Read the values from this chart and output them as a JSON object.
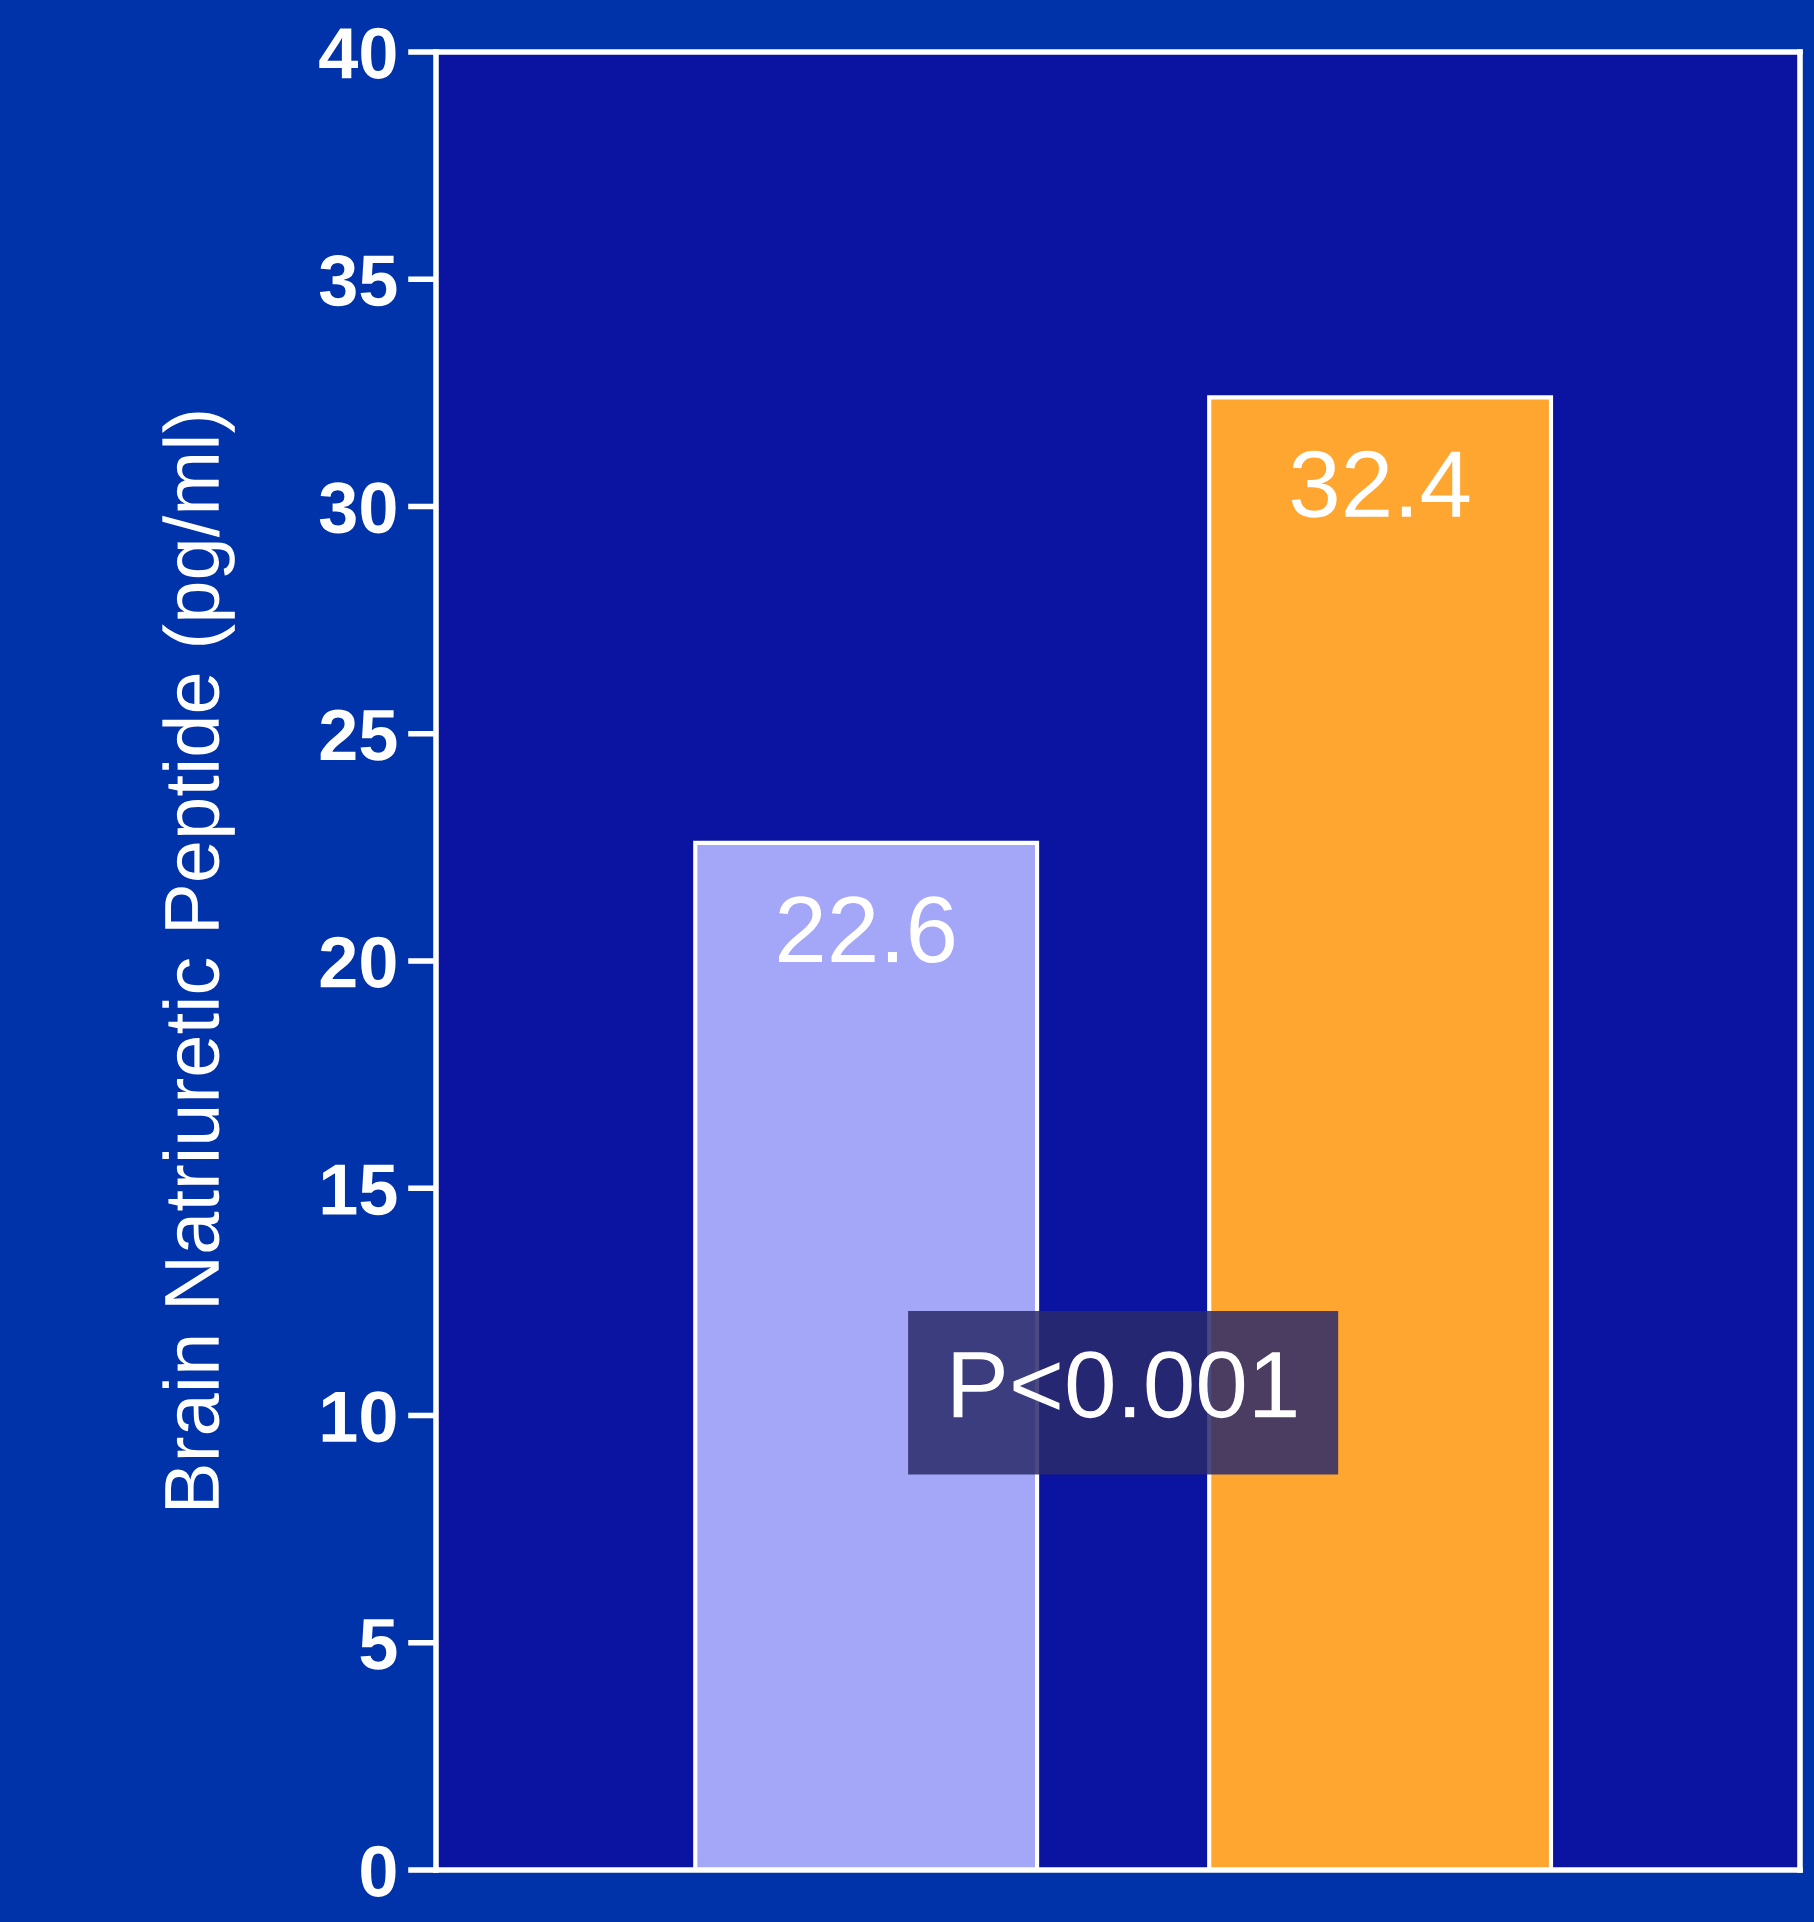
{
  "chart_data": {
    "type": "bar",
    "ylabel": "Brain Natriuretic Peptide (pg/ml)",
    "categories": [
      null,
      null
    ],
    "values": [
      22.6,
      32.4
    ],
    "colors": [
      "#a4a6f8",
      "#ffa630"
    ],
    "ylim": [
      0,
      40
    ],
    "yticks": [
      0,
      5,
      10,
      15,
      20,
      25,
      30,
      35,
      40
    ],
    "data_labels": true,
    "grid": false,
    "annotations": [
      "P<0.001"
    ]
  }
}
